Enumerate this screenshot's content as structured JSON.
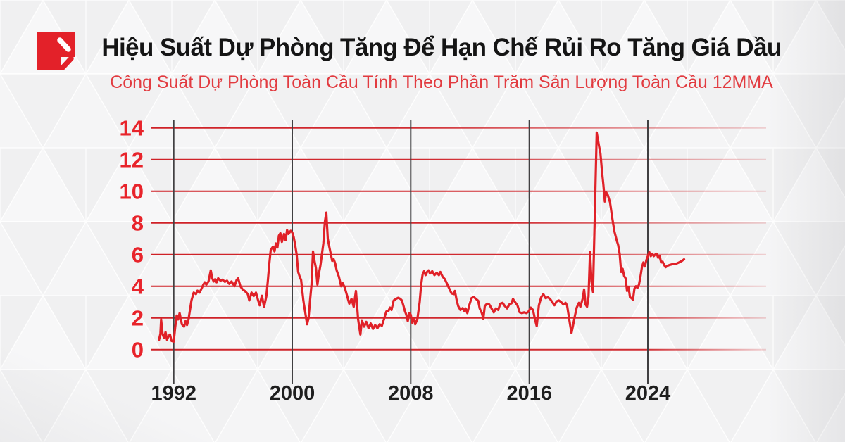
{
  "header": {
    "title": "Hiệu Suất Dự Phòng Tăng Để Hạn Chế Rủi Ro Tăng Giá Dầu",
    "subtitle": "Công Suất Dự Phòng Toàn Cầu Tính Theo Phần Trăm Sản Lượng Toàn Cầu 12MMA"
  },
  "logo": {
    "name": "red-p-mark",
    "color": "#e32129"
  },
  "colors": {
    "background": "#f3f3f4",
    "title_text": "#151515",
    "subtitle_red": "#e23b40",
    "line_red": "#e02128",
    "grid_red": "#cf2127",
    "y_label_red": "#e8242b",
    "x_label_dark": "#1e1e1e",
    "year_tick_line": "#414042"
  },
  "chart_data": {
    "type": "line",
    "title": "Hiệu Suất Dự Phòng Tăng Để Hạn Chế Rủi Ro Tăng Giá Dầu",
    "subtitle": "Công Suất Dự Phòng Toàn Cầu Tính Theo Phần Trăm Sản Lượng Toàn Cầu 12MMA",
    "xlabel": "",
    "ylabel": "",
    "legend": "none",
    "grid": {
      "horizontal": "red lines at each y tick",
      "vertical": "dark lines at each x tick"
    },
    "xlim": [
      1990.8,
      2027.2
    ],
    "ylim": [
      0,
      14
    ],
    "x_ticks": [
      1992,
      2000,
      2008,
      2016,
      2024
    ],
    "x_tick_labels": [
      "1992",
      "2000",
      "2008",
      "2016",
      "2024"
    ],
    "y_ticks": [
      0,
      2,
      4,
      6,
      8,
      10,
      12,
      14
    ],
    "y_tick_labels": [
      "0",
      "2",
      "4",
      "6",
      "8",
      "10",
      "12",
      "14"
    ],
    "series": [
      {
        "name": "Công suất dự phòng toàn cầu (% sản lượng toàn cầu, 12MMA)",
        "points": [
          [
            1991.0,
            0.6
          ],
          [
            1991.1,
            1.0
          ],
          [
            1991.15,
            1.9
          ],
          [
            1991.25,
            0.95
          ],
          [
            1991.35,
            0.75
          ],
          [
            1991.45,
            1.1
          ],
          [
            1991.55,
            0.62
          ],
          [
            1991.65,
            0.85
          ],
          [
            1991.75,
            0.95
          ],
          [
            1991.85,
            0.55
          ],
          [
            1992.0,
            0.5
          ],
          [
            1992.1,
            1.4
          ],
          [
            1992.2,
            2.15
          ],
          [
            1992.3,
            1.9
          ],
          [
            1992.4,
            2.3
          ],
          [
            1992.55,
            1.6
          ],
          [
            1992.7,
            1.45
          ],
          [
            1992.8,
            1.8
          ],
          [
            1992.9,
            1.55
          ],
          [
            1993.0,
            1.9
          ],
          [
            1993.1,
            2.5
          ],
          [
            1993.2,
            3.1
          ],
          [
            1993.35,
            3.6
          ],
          [
            1993.5,
            3.5
          ],
          [
            1993.6,
            3.72
          ],
          [
            1993.75,
            3.6
          ],
          [
            1993.9,
            3.9
          ],
          [
            1994.0,
            4.1
          ],
          [
            1994.1,
            4.25
          ],
          [
            1994.2,
            4.1
          ],
          [
            1994.35,
            4.3
          ],
          [
            1994.5,
            5.0
          ],
          [
            1994.6,
            4.5
          ],
          [
            1994.7,
            4.3
          ],
          [
            1994.8,
            4.45
          ],
          [
            1994.9,
            4.25
          ],
          [
            1995.0,
            4.5
          ],
          [
            1995.15,
            4.35
          ],
          [
            1995.3,
            4.42
          ],
          [
            1995.45,
            4.28
          ],
          [
            1995.6,
            4.35
          ],
          [
            1995.75,
            4.15
          ],
          [
            1995.9,
            4.3
          ],
          [
            1996.0,
            4.15
          ],
          [
            1996.1,
            4.0
          ],
          [
            1996.25,
            4.4
          ],
          [
            1996.35,
            4.5
          ],
          [
            1996.5,
            4.0
          ],
          [
            1996.65,
            3.8
          ],
          [
            1996.8,
            3.7
          ],
          [
            1997.0,
            3.5
          ],
          [
            1997.1,
            3.1
          ],
          [
            1997.25,
            3.6
          ],
          [
            1997.4,
            3.38
          ],
          [
            1997.55,
            3.6
          ],
          [
            1997.7,
            3.1
          ],
          [
            1997.8,
            2.8
          ],
          [
            1997.95,
            3.4
          ],
          [
            1998.1,
            2.7
          ],
          [
            1998.25,
            3.35
          ],
          [
            1998.35,
            4.3
          ],
          [
            1998.45,
            5.4
          ],
          [
            1998.55,
            6.3
          ],
          [
            1998.7,
            6.5
          ],
          [
            1998.8,
            6.2
          ],
          [
            1998.9,
            6.7
          ],
          [
            1999.0,
            6.45
          ],
          [
            1999.1,
            7.2
          ],
          [
            1999.2,
            7.35
          ],
          [
            1999.3,
            6.8
          ],
          [
            1999.45,
            7.3
          ],
          [
            1999.55,
            6.9
          ],
          [
            1999.65,
            7.55
          ],
          [
            1999.75,
            7.3
          ],
          [
            1999.9,
            7.5
          ],
          [
            2000.0,
            7.4
          ],
          [
            2000.1,
            7.1
          ],
          [
            2000.2,
            6.6
          ],
          [
            2000.3,
            6.0
          ],
          [
            2000.4,
            4.9
          ],
          [
            2000.5,
            4.62
          ],
          [
            2000.6,
            4.4
          ],
          [
            2000.75,
            3.1
          ],
          [
            2000.9,
            2.2
          ],
          [
            2001.0,
            1.6
          ],
          [
            2001.1,
            2.0
          ],
          [
            2001.2,
            3.1
          ],
          [
            2001.3,
            4.1
          ],
          [
            2001.4,
            6.2
          ],
          [
            2001.5,
            5.6
          ],
          [
            2001.6,
            5.15
          ],
          [
            2001.7,
            4.1
          ],
          [
            2001.8,
            4.8
          ],
          [
            2001.9,
            5.3
          ],
          [
            2002.0,
            6.0
          ],
          [
            2002.1,
            6.7
          ],
          [
            2002.2,
            8.05
          ],
          [
            2002.3,
            8.65
          ],
          [
            2002.4,
            7.0
          ],
          [
            2002.5,
            6.5
          ],
          [
            2002.6,
            6.05
          ],
          [
            2002.7,
            5.6
          ],
          [
            2002.8,
            5.7
          ],
          [
            2002.9,
            5.45
          ],
          [
            2003.0,
            5.0
          ],
          [
            2003.15,
            4.6
          ],
          [
            2003.3,
            4.0
          ],
          [
            2003.4,
            4.2
          ],
          [
            2003.55,
            3.9
          ],
          [
            2003.7,
            3.4
          ],
          [
            2003.85,
            2.9
          ],
          [
            2004.0,
            3.2
          ],
          [
            2004.15,
            2.7
          ],
          [
            2004.3,
            3.7
          ],
          [
            2004.45,
            1.9
          ],
          [
            2004.6,
            0.95
          ],
          [
            2004.7,
            1.85
          ],
          [
            2004.85,
            1.45
          ],
          [
            2005.0,
            1.75
          ],
          [
            2005.15,
            1.35
          ],
          [
            2005.3,
            1.65
          ],
          [
            2005.45,
            1.3
          ],
          [
            2005.6,
            1.55
          ],
          [
            2005.75,
            1.35
          ],
          [
            2005.9,
            1.6
          ],
          [
            2006.05,
            1.5
          ],
          [
            2006.2,
            1.95
          ],
          [
            2006.35,
            2.4
          ],
          [
            2006.5,
            2.45
          ],
          [
            2006.6,
            2.65
          ],
          [
            2006.7,
            2.5
          ],
          [
            2006.85,
            3.1
          ],
          [
            2007.0,
            3.2
          ],
          [
            2007.15,
            3.27
          ],
          [
            2007.3,
            3.2
          ],
          [
            2007.4,
            3.1
          ],
          [
            2007.5,
            2.8
          ],
          [
            2007.6,
            2.45
          ],
          [
            2007.7,
            2.2
          ],
          [
            2007.8,
            1.8
          ],
          [
            2007.9,
            2.3
          ],
          [
            2008.0,
            2.2
          ],
          [
            2008.1,
            1.7
          ],
          [
            2008.2,
            2.0
          ],
          [
            2008.3,
            1.6
          ],
          [
            2008.45,
            1.95
          ],
          [
            2008.6,
            3.0
          ],
          [
            2008.7,
            4.1
          ],
          [
            2008.8,
            4.75
          ],
          [
            2008.9,
            4.95
          ],
          [
            2009.0,
            4.7
          ],
          [
            2009.1,
            4.9
          ],
          [
            2009.2,
            5.0
          ],
          [
            2009.3,
            4.8
          ],
          [
            2009.45,
            4.95
          ],
          [
            2009.6,
            4.7
          ],
          [
            2009.75,
            4.85
          ],
          [
            2009.9,
            4.7
          ],
          [
            2010.0,
            4.9
          ],
          [
            2010.15,
            4.6
          ],
          [
            2010.3,
            4.45
          ],
          [
            2010.45,
            4.15
          ],
          [
            2010.6,
            3.85
          ],
          [
            2010.75,
            3.55
          ],
          [
            2010.9,
            3.5
          ],
          [
            2010.98,
            3.7
          ],
          [
            2011.1,
            3.1
          ],
          [
            2011.2,
            2.75
          ],
          [
            2011.35,
            2.5
          ],
          [
            2011.5,
            2.62
          ],
          [
            2011.6,
            2.45
          ],
          [
            2011.7,
            2.6
          ],
          [
            2011.82,
            2.3
          ],
          [
            2011.95,
            2.8
          ],
          [
            2012.1,
            3.25
          ],
          [
            2012.25,
            3.32
          ],
          [
            2012.4,
            3.2
          ],
          [
            2012.55,
            3.08
          ],
          [
            2012.65,
            2.6
          ],
          [
            2012.8,
            2.3
          ],
          [
            2012.9,
            1.95
          ],
          [
            2013.0,
            2.75
          ],
          [
            2013.15,
            2.9
          ],
          [
            2013.3,
            2.85
          ],
          [
            2013.45,
            2.6
          ],
          [
            2013.6,
            2.35
          ],
          [
            2013.75,
            2.6
          ],
          [
            2013.9,
            2.5
          ],
          [
            2014.05,
            2.9
          ],
          [
            2014.2,
            2.95
          ],
          [
            2014.35,
            2.75
          ],
          [
            2014.5,
            2.6
          ],
          [
            2014.65,
            2.85
          ],
          [
            2014.8,
            2.92
          ],
          [
            2014.9,
            3.2
          ],
          [
            2015.0,
            3.05
          ],
          [
            2015.2,
            2.8
          ],
          [
            2015.35,
            2.35
          ],
          [
            2015.5,
            2.3
          ],
          [
            2015.65,
            2.35
          ],
          [
            2015.8,
            2.3
          ],
          [
            2015.95,
            2.4
          ],
          [
            2016.1,
            2.65
          ],
          [
            2016.25,
            2.5
          ],
          [
            2016.4,
            1.85
          ],
          [
            2016.5,
            1.48
          ],
          [
            2016.65,
            2.8
          ],
          [
            2016.8,
            3.3
          ],
          [
            2016.95,
            3.5
          ],
          [
            2017.1,
            3.25
          ],
          [
            2017.25,
            3.3
          ],
          [
            2017.4,
            3.2
          ],
          [
            2017.55,
            3.0
          ],
          [
            2017.7,
            2.8
          ],
          [
            2017.85,
            3.05
          ],
          [
            2018.0,
            3.1
          ],
          [
            2018.15,
            3.0
          ],
          [
            2018.3,
            2.85
          ],
          [
            2018.45,
            2.95
          ],
          [
            2018.55,
            2.8
          ],
          [
            2018.65,
            2.2
          ],
          [
            2018.75,
            1.6
          ],
          [
            2018.85,
            1.05
          ],
          [
            2018.95,
            1.5
          ],
          [
            2019.05,
            2.0
          ],
          [
            2019.2,
            2.65
          ],
          [
            2019.35,
            2.95
          ],
          [
            2019.45,
            2.7
          ],
          [
            2019.6,
            3.2
          ],
          [
            2019.7,
            3.8
          ],
          [
            2019.8,
            2.85
          ],
          [
            2019.9,
            2.7
          ],
          [
            2020.0,
            3.35
          ],
          [
            2020.1,
            6.15
          ],
          [
            2020.2,
            4.3
          ],
          [
            2020.3,
            3.65
          ],
          [
            2020.42,
            8.5
          ],
          [
            2020.55,
            13.7
          ],
          [
            2020.7,
            12.9
          ],
          [
            2020.8,
            12.4
          ],
          [
            2020.9,
            11.3
          ],
          [
            2021.0,
            10.4
          ],
          [
            2021.1,
            9.35
          ],
          [
            2021.18,
            9.95
          ],
          [
            2021.3,
            9.75
          ],
          [
            2021.45,
            9.3
          ],
          [
            2021.6,
            8.3
          ],
          [
            2021.75,
            7.45
          ],
          [
            2021.9,
            6.9
          ],
          [
            2022.0,
            6.6
          ],
          [
            2022.1,
            6.05
          ],
          [
            2022.2,
            4.9
          ],
          [
            2022.3,
            5.1
          ],
          [
            2022.4,
            4.65
          ],
          [
            2022.5,
            4.5
          ],
          [
            2022.6,
            3.7
          ],
          [
            2022.7,
            3.95
          ],
          [
            2022.8,
            3.3
          ],
          [
            2022.9,
            3.25
          ],
          [
            2023.0,
            3.15
          ],
          [
            2023.1,
            3.85
          ],
          [
            2023.2,
            4.0
          ],
          [
            2023.3,
            3.9
          ],
          [
            2023.4,
            4.1
          ],
          [
            2023.5,
            4.6
          ],
          [
            2023.6,
            5.2
          ],
          [
            2023.7,
            5.5
          ],
          [
            2023.8,
            5.25
          ],
          [
            2023.9,
            5.65
          ],
          [
            2024.0,
            5.9
          ],
          [
            2024.1,
            6.15
          ],
          [
            2024.2,
            5.9
          ],
          [
            2024.3,
            6.05
          ],
          [
            2024.4,
            5.9
          ],
          [
            2024.5,
            6.0
          ],
          [
            2024.6,
            6.05
          ],
          [
            2024.7,
            5.8
          ],
          [
            2024.8,
            5.9
          ],
          [
            2024.9,
            5.5
          ],
          [
            2025.0,
            5.55
          ],
          [
            2025.1,
            5.35
          ],
          [
            2025.2,
            5.2
          ],
          [
            2025.35,
            5.3
          ],
          [
            2025.5,
            5.35
          ],
          [
            2025.7,
            5.4
          ],
          [
            2025.9,
            5.42
          ],
          [
            2026.1,
            5.5
          ],
          [
            2026.3,
            5.6
          ],
          [
            2026.45,
            5.7
          ]
        ]
      }
    ]
  }
}
